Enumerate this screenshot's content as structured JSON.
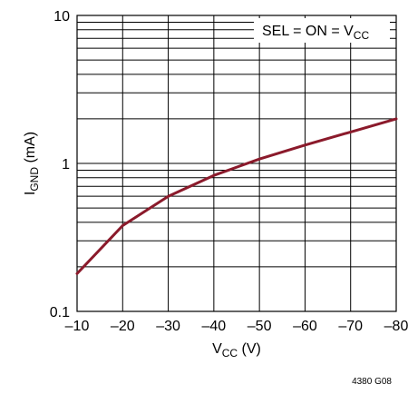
{
  "chart_data": {
    "type": "line",
    "title": "",
    "xlabel": {
      "main": "V",
      "sub": "CC",
      "unit": " (V)"
    },
    "ylabel": {
      "main": "I",
      "sub": "GND",
      "unit": " (mA)"
    },
    "xlim": [
      -10,
      -80
    ],
    "ylim": [
      0.1,
      10
    ],
    "yscale": "log",
    "grid": true,
    "x_ticks": [
      -10,
      -20,
      -30,
      -40,
      -50,
      -60,
      -70,
      -80
    ],
    "x_tick_labels": [
      "–10",
      "–20",
      "–30",
      "–40",
      "–50",
      "–60",
      "–70",
      "–80"
    ],
    "y_ticks": [
      0.1,
      1,
      10
    ],
    "y_tick_labels": [
      "0.1",
      "1",
      "10"
    ],
    "legend": {
      "position": "top-right",
      "text": "SEL = ON = V",
      "sub": "CC"
    },
    "series": [
      {
        "color": "#8b1a2b",
        "x": [
          -10,
          -20,
          -30,
          -40,
          -50,
          -60,
          -70,
          -80
        ],
        "y": [
          0.18,
          0.38,
          0.6,
          0.83,
          1.07,
          1.33,
          1.63,
          2.0
        ]
      }
    ]
  },
  "figure_id": "4380 G08"
}
